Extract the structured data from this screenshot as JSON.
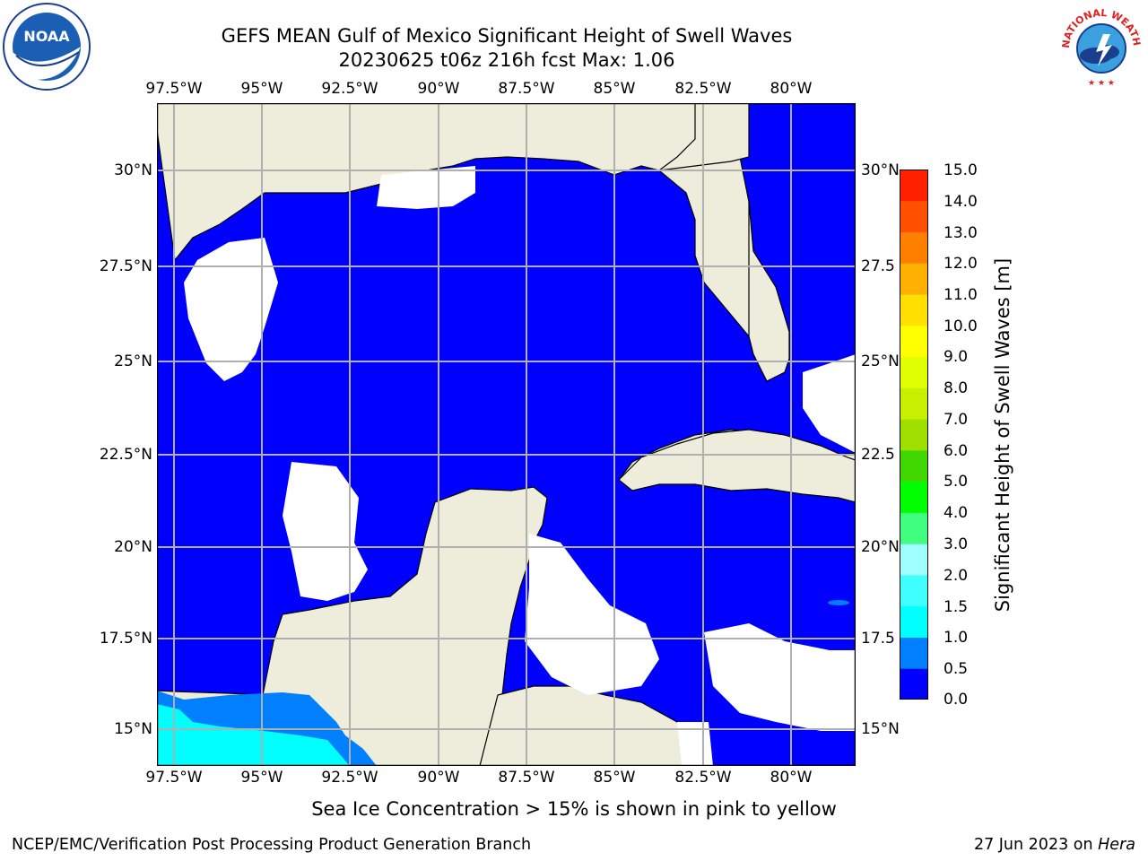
{
  "title": {
    "line1": "GEFS MEAN Gulf of Mexico Significant Height of Swell Waves",
    "line2": "20230625 t06z 216h fcst   Max: 1.06"
  },
  "logos": {
    "left": "NOAA",
    "right_lettering": "NATIONAL WEATHER SERVICE"
  },
  "map": {
    "lon_ticks": [
      "97.5°W",
      "95°W",
      "92.5°W",
      "90°W",
      "87.5°W",
      "85°W",
      "82.5°W",
      "80°W"
    ],
    "lat_ticks": [
      "30°N",
      "27.5°N",
      "25°N",
      "22.5°N",
      "20°N",
      "17.5°N",
      "15°N"
    ],
    "right_lat_ticks": [
      "30°N",
      "27.5",
      "25°N",
      "22.5",
      "20°N",
      "17.5",
      "15°N"
    ],
    "colors": {
      "land": "#eeeddc",
      "water_low": "#0000ff",
      "no_data": "#ffffff",
      "grid": "#b0b0b0"
    }
  },
  "colorbar": {
    "label": "Significant Height of Swell Waves [m]",
    "ticks": [
      "15.0",
      "14.0",
      "13.0",
      "12.0",
      "11.0",
      "10.0",
      "9.0",
      "8.0",
      "7.0",
      "6.0",
      "5.0",
      "4.0",
      "3.0",
      "2.0",
      "1.5",
      "1.0",
      "0.5",
      "0.0"
    ],
    "bins": [
      {
        "range": "0.0-0.5",
        "color": "#0000ff"
      },
      {
        "range": "0.5-1.0",
        "color": "#0080ff"
      },
      {
        "range": "1.0-1.5",
        "color": "#00ffff"
      },
      {
        "range": "1.5-2.0",
        "color": "#40ffff"
      },
      {
        "range": "2.0-3.0",
        "color": "#a0ffff"
      },
      {
        "range": "3.0-4.0",
        "color": "#40ff80"
      },
      {
        "range": "4.0-5.0",
        "color": "#00ff00"
      },
      {
        "range": "5.0-6.0",
        "color": "#40d800"
      },
      {
        "range": "6.0-7.0",
        "color": "#a0e000"
      },
      {
        "range": "7.0-8.0",
        "color": "#c8f000"
      },
      {
        "range": "8.0-9.0",
        "color": "#e0ff00"
      },
      {
        "range": "9.0-10.0",
        "color": "#ffff00"
      },
      {
        "range": "10.0-11.0",
        "color": "#ffe000"
      },
      {
        "range": "11.0-12.0",
        "color": "#ffb000"
      },
      {
        "range": "12.0-13.0",
        "color": "#ff8000"
      },
      {
        "range": "13.0-14.0",
        "color": "#ff5000"
      },
      {
        "range": "14.0-15.0",
        "color": "#ff2000"
      }
    ]
  },
  "notes": {
    "sea_ice": "Sea Ice Concentration > 15% is shown in pink to yellow"
  },
  "footer": {
    "left": "NCEP/EMC/Verification Post Processing Product Generation Branch",
    "right_date": "27 Jun 2023 on ",
    "right_host": "Hera"
  }
}
